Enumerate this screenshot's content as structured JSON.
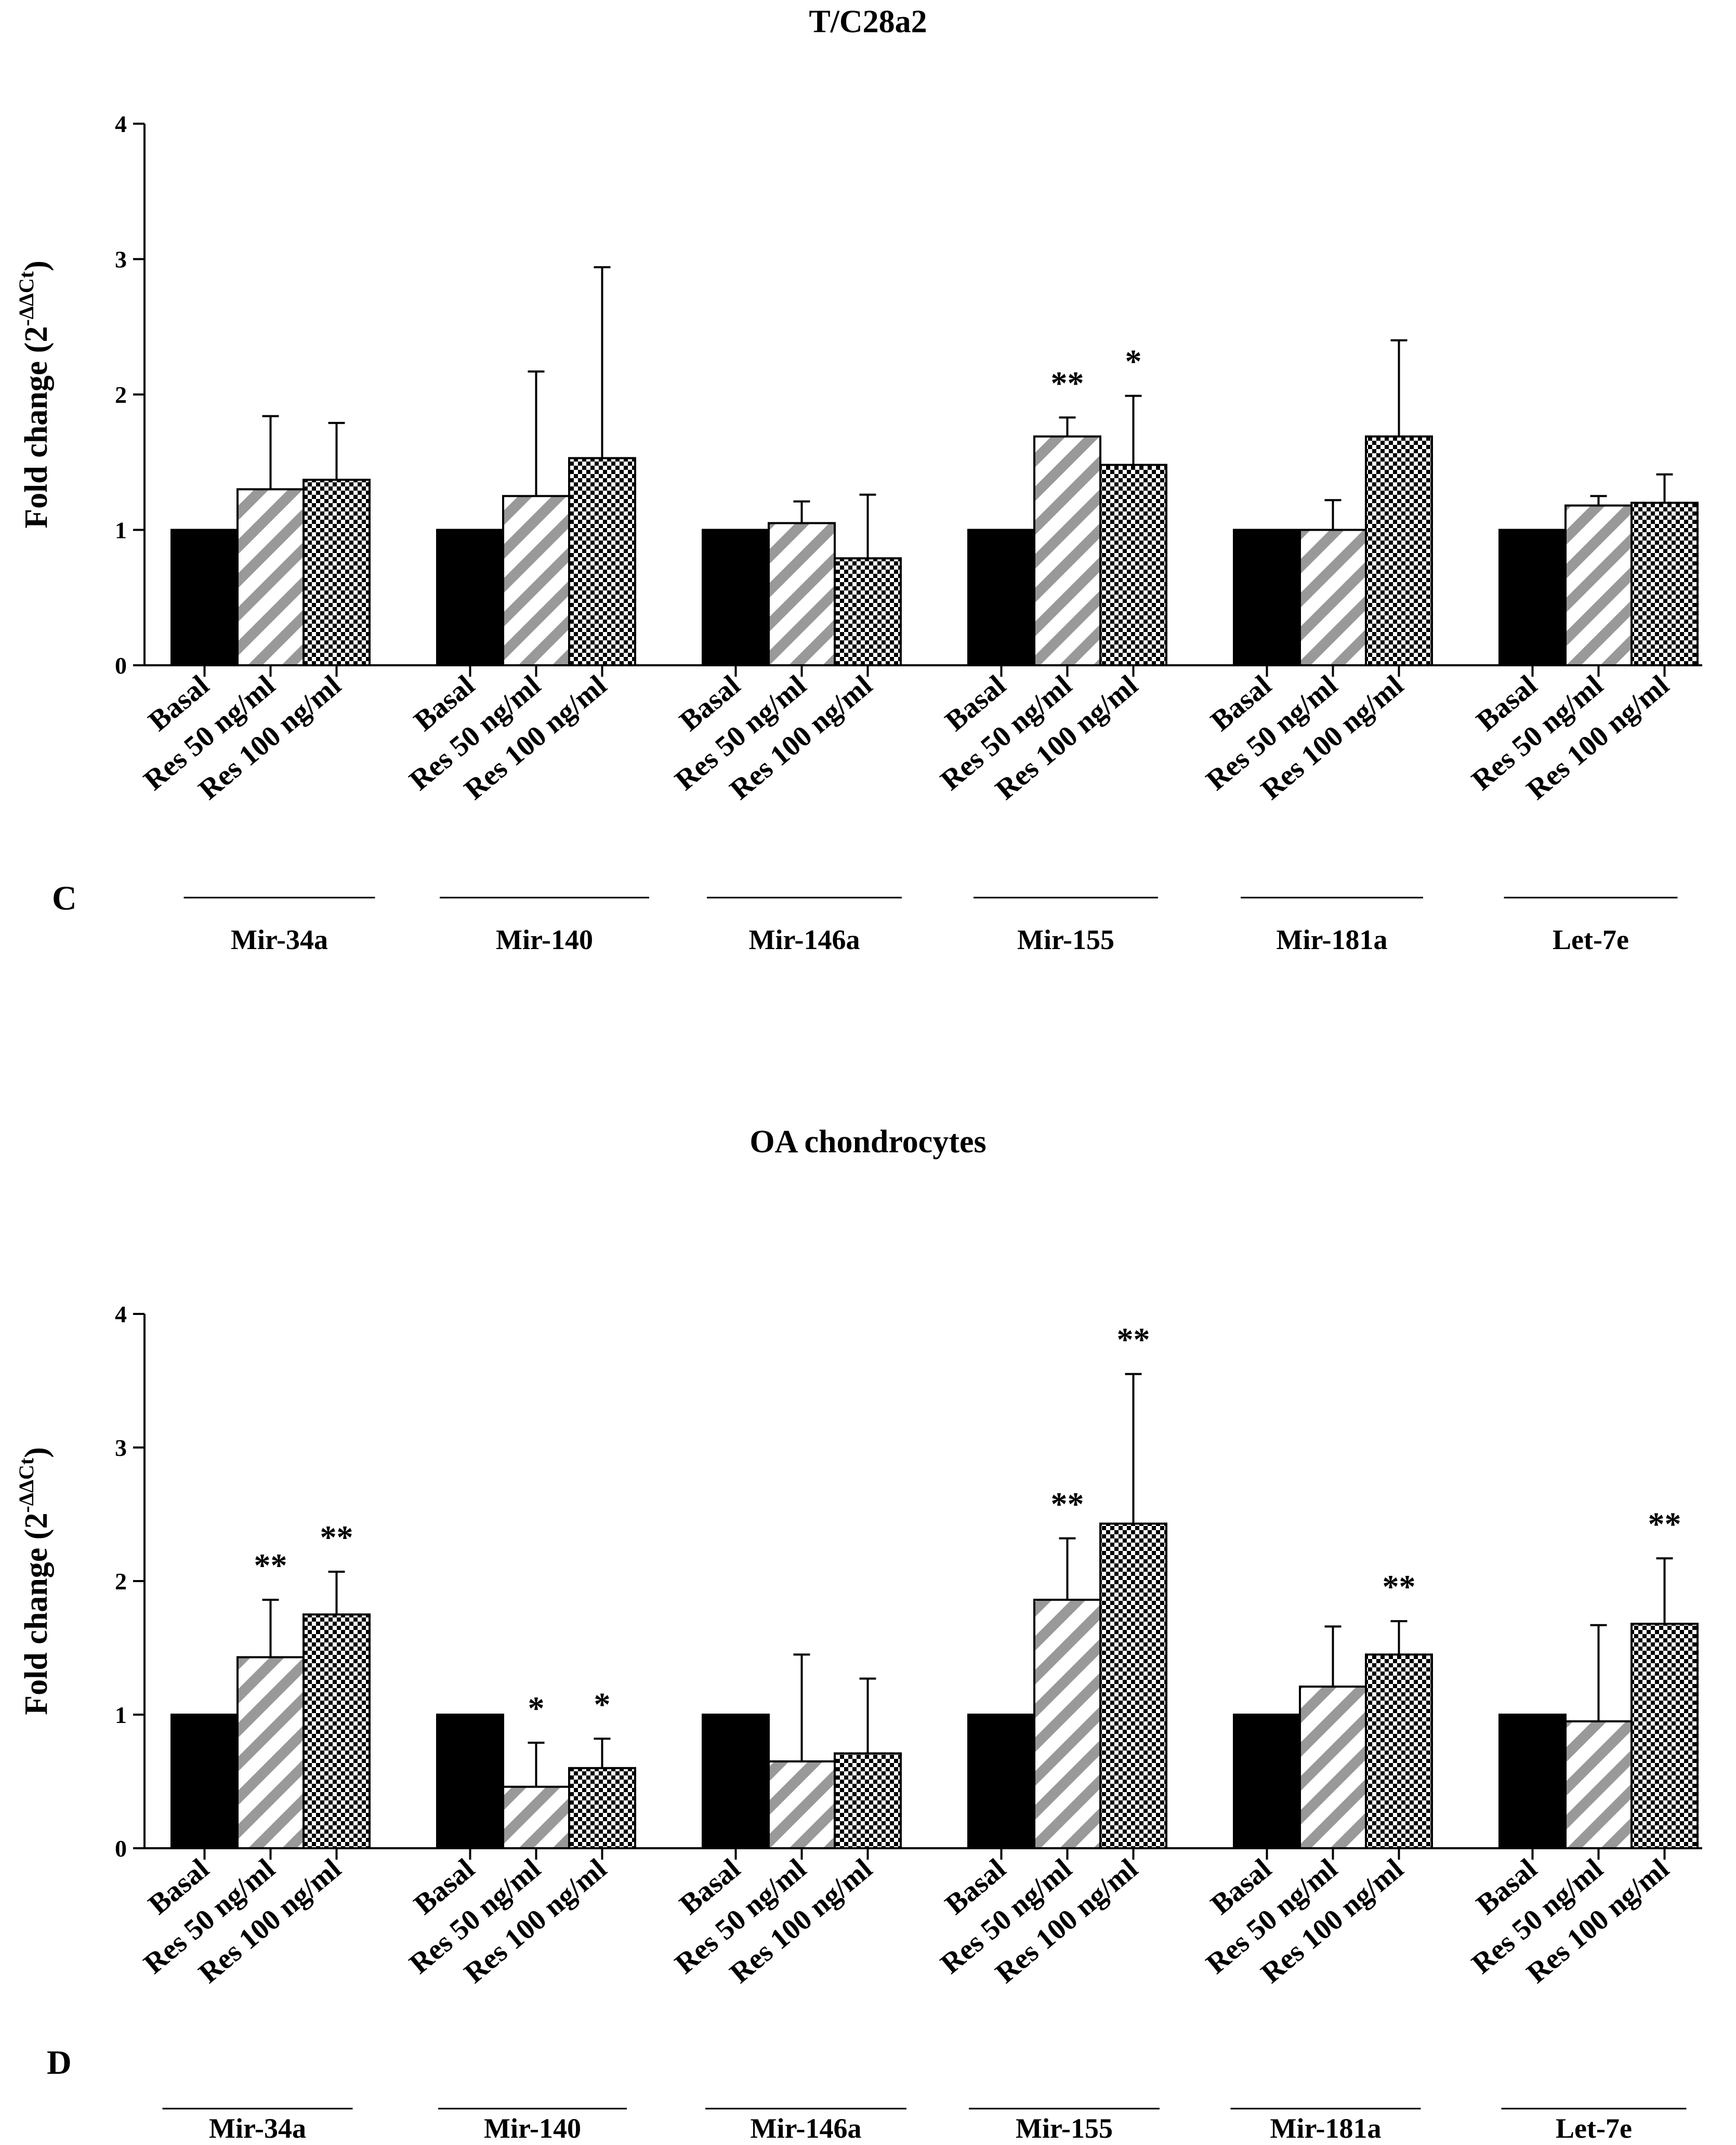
{
  "colors": {
    "ink": "#000000",
    "hatch": "#999999",
    "background": "#ffffff"
  },
  "chart_data": [
    {
      "type": "bar",
      "panel_label": "C",
      "title": "T/C28a2",
      "ylabel_main": "Fold change (2",
      "ylabel_sup": "-ΔΔCt",
      "ylabel_close": ")",
      "ylim": [
        0,
        4
      ],
      "yticks": [
        0,
        1,
        2,
        3,
        4
      ],
      "conditions": [
        "Basal",
        "Res 50 ng/ml",
        "Res 100 ng/ml"
      ],
      "legend": [
        {
          "name": "Basal",
          "fill": "solid"
        },
        {
          "name": "Res 50 ng/ml",
          "fill": "diagonal-hatch"
        },
        {
          "name": "Res 100 ng/ml",
          "fill": "checkerboard"
        }
      ],
      "groups": [
        {
          "name": "Mir-34a",
          "values": [
            1.0,
            1.3,
            1.37
          ],
          "errors": [
            0,
            0.54,
            0.42
          ],
          "sig": [
            "",
            "",
            ""
          ]
        },
        {
          "name": "Mir-140",
          "values": [
            1.0,
            1.25,
            1.53
          ],
          "errors": [
            0,
            0.92,
            1.41
          ],
          "sig": [
            "",
            "",
            ""
          ]
        },
        {
          "name": "Mir-146a",
          "values": [
            1.0,
            1.05,
            0.79
          ],
          "errors": [
            0,
            0.16,
            0.47
          ],
          "sig": [
            "",
            "",
            ""
          ]
        },
        {
          "name": "Mir-155",
          "values": [
            1.0,
            1.69,
            1.48
          ],
          "errors": [
            0,
            0.14,
            0.51
          ],
          "sig": [
            "",
            "**",
            "*"
          ]
        },
        {
          "name": "Mir-181a",
          "values": [
            1.0,
            1.0,
            1.69
          ],
          "errors": [
            0,
            0.22,
            0.71
          ],
          "sig": [
            "",
            "",
            ""
          ]
        },
        {
          "name": "Let-7e",
          "values": [
            1.0,
            1.18,
            1.2
          ],
          "errors": [
            0,
            0.07,
            0.21
          ],
          "sig": [
            "",
            "",
            ""
          ]
        }
      ]
    },
    {
      "type": "bar",
      "panel_label": "D",
      "title": "OA chondrocytes",
      "ylabel_main": "Fold change (2",
      "ylabel_sup": "-ΔΔCt",
      "ylabel_close": ")",
      "ylim": [
        0,
        4
      ],
      "yticks": [
        0,
        1,
        2,
        3,
        4
      ],
      "conditions": [
        "Basal",
        "Res 50 ng/ml",
        "Res 100 ng/ml"
      ],
      "legend": [
        {
          "name": "Basal",
          "fill": "solid"
        },
        {
          "name": "Res 50 ng/ml",
          "fill": "diagonal-hatch"
        },
        {
          "name": "Res 100 ng/ml",
          "fill": "checkerboard"
        }
      ],
      "groups": [
        {
          "name": "Mir-34a",
          "values": [
            1.0,
            1.43,
            1.75
          ],
          "errors": [
            0,
            0.43,
            0.32
          ],
          "sig": [
            "",
            "**",
            "**"
          ]
        },
        {
          "name": "Mir-140",
          "values": [
            1.0,
            0.46,
            0.6
          ],
          "errors": [
            0,
            0.33,
            0.22
          ],
          "sig": [
            "",
            "*",
            "*"
          ]
        },
        {
          "name": "Mir-146a",
          "values": [
            1.0,
            0.65,
            0.71
          ],
          "errors": [
            0,
            0.8,
            0.56
          ],
          "sig": [
            "",
            "",
            ""
          ]
        },
        {
          "name": "Mir-155",
          "values": [
            1.0,
            1.86,
            2.43
          ],
          "errors": [
            0,
            0.46,
            1.12
          ],
          "sig": [
            "",
            "**",
            "**"
          ]
        },
        {
          "name": "Mir-181a",
          "values": [
            1.0,
            1.21,
            1.45
          ],
          "errors": [
            0,
            0.45,
            0.25
          ],
          "sig": [
            "",
            "",
            "**"
          ]
        },
        {
          "name": "Let-7e",
          "values": [
            1.0,
            0.95,
            1.68
          ],
          "errors": [
            0,
            0.72,
            0.49
          ],
          "sig": [
            "",
            "",
            "**"
          ]
        }
      ]
    }
  ]
}
